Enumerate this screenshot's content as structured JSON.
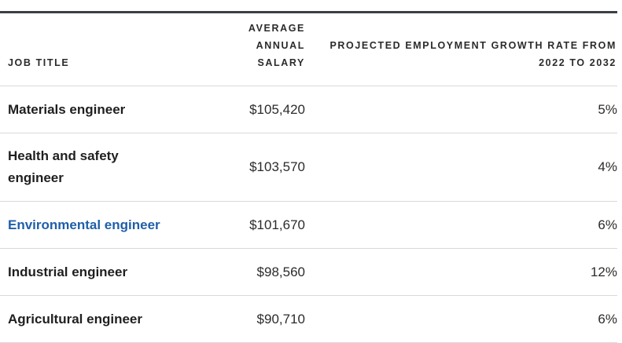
{
  "table": {
    "headers": {
      "job_title": "JOB TITLE",
      "salary_line1": "AVERAGE ANNUAL",
      "salary_line2": "SALARY",
      "growth_line1": "PROJECTED EMPLOYMENT GROWTH RATE FROM",
      "growth_line2": "2022 TO 2032"
    },
    "rows": [
      {
        "job": "Materials engineer",
        "salary": "$105,420",
        "growth": "5%"
      },
      {
        "job": "Health and safety engineer",
        "salary": "$103,570",
        "growth": "4%"
      },
      {
        "job": "Environmental engineer",
        "salary": "$101,670",
        "growth": "6%"
      },
      {
        "job": "Industrial engineer",
        "salary": "$98,560",
        "growth": "12%"
      },
      {
        "job": "Agricultural engineer",
        "salary": "$90,710",
        "growth": "6%"
      }
    ],
    "colors": {
      "link": "#1f5fa8",
      "rule": "#3b3f45",
      "divider": "#d9d9d9"
    }
  }
}
